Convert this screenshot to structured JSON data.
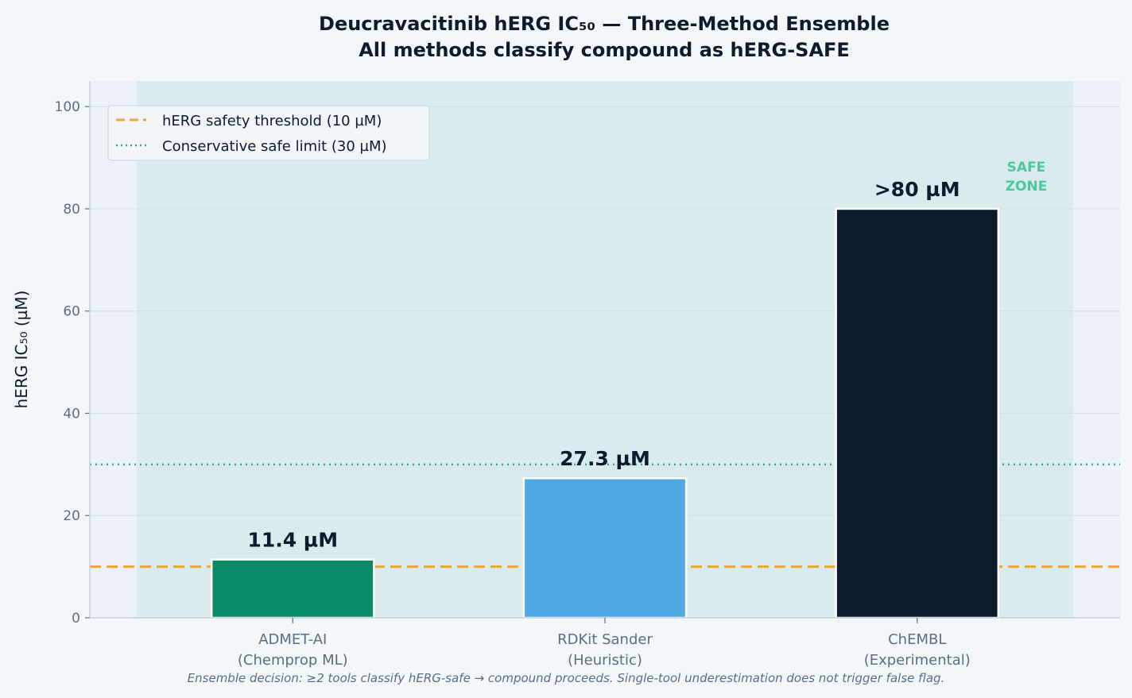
{
  "chart_data": {
    "type": "bar",
    "title_line1": "Deucravacitinib hERG IC₅₀ — Three-Method Ensemble",
    "title_line2": "All methods classify compound as hERG-SAFE",
    "ylabel": "hERG IC₅₀ (µM)",
    "ylim": [
      0,
      105
    ],
    "yticks": [
      "0",
      "20",
      "40",
      "60",
      "80",
      "100"
    ],
    "grid": true,
    "categories": [
      {
        "line1": "ADMET-AI",
        "line2": "(Chemprop ML)"
      },
      {
        "line1": "RDKit Sander",
        "line2": "(Heuristic)"
      },
      {
        "line1": "ChEMBL",
        "line2": "(Experimental)"
      }
    ],
    "values": [
      11.4,
      27.3,
      80
    ],
    "value_labels": [
      "11.4 µM",
      "27.3 µM",
      ">80 µM"
    ],
    "bar_colors": [
      "#0b8a68",
      "#4ea8e3",
      "#0d1b2e"
    ],
    "reference_lines": [
      {
        "label": "hERG safety threshold (10 µM)",
        "value": 10,
        "style": "dashed",
        "color": "#f0a530"
      },
      {
        "label": "Conservative safe limit (30 µM)",
        "value": 30,
        "style": "dotted",
        "color": "#3aa887"
      }
    ],
    "safe_zone_label": [
      "SAFE",
      "ZONE"
    ],
    "legend_position": "top-left",
    "footnote": "Ensemble decision: ≥2 tools classify hERG-safe → compound proceeds. Single-tool underestimation does not trigger false flag."
  }
}
